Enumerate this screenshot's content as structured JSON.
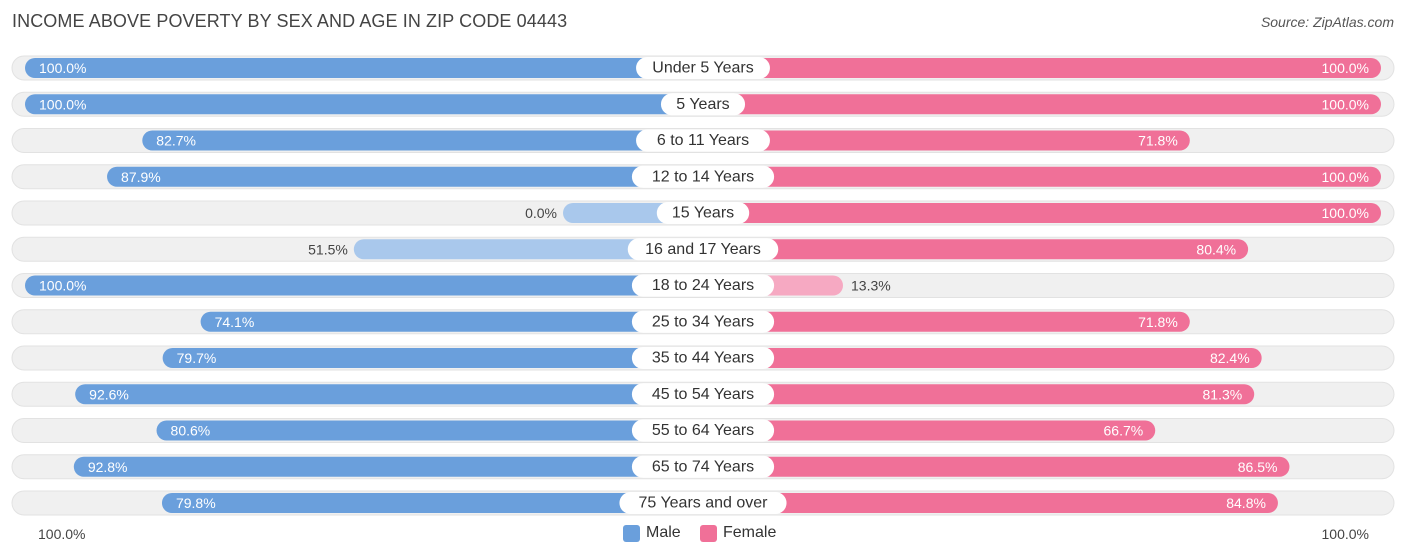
{
  "header": {
    "title": "INCOME ABOVE POVERTY BY SEX AND AGE IN ZIP CODE 04443",
    "source": "Source: ZipAtlas.com"
  },
  "colors": {
    "male_strong": "#6a9fdc",
    "male_light": "#a9c8ec",
    "female_strong": "#f07098",
    "female_light": "#f6a9c2",
    "track": "#f0f0f0"
  },
  "legend": {
    "male": "Male",
    "female": "Female"
  },
  "axis": {
    "left_label": "100.0%",
    "right_label": "100.0%"
  },
  "chart_data": {
    "type": "bar",
    "orientation": "horizontal-diverging",
    "title": "INCOME ABOVE POVERTY BY SEX AND AGE IN ZIP CODE 04443",
    "xlim": [
      0,
      100
    ],
    "unit": "%",
    "categories": [
      "Under 5 Years",
      "5 Years",
      "6 to 11 Years",
      "12 to 14 Years",
      "15 Years",
      "16 and 17 Years",
      "18 to 24 Years",
      "25 to 34 Years",
      "35 to 44 Years",
      "45 to 54 Years",
      "55 to 64 Years",
      "65 to 74 Years",
      "75 Years and over"
    ],
    "series": [
      {
        "name": "Male",
        "values": [
          100.0,
          100.0,
          82.7,
          87.9,
          0.0,
          51.5,
          100.0,
          74.1,
          79.7,
          92.6,
          80.6,
          92.8,
          79.8
        ],
        "labels": [
          "100.0%",
          "100.0%",
          "82.7%",
          "87.9%",
          "0.0%",
          "51.5%",
          "100.0%",
          "74.1%",
          "79.7%",
          "92.6%",
          "80.6%",
          "92.8%",
          "79.8%"
        ]
      },
      {
        "name": "Female",
        "values": [
          100.0,
          100.0,
          71.8,
          100.0,
          100.0,
          80.4,
          13.3,
          71.8,
          82.4,
          81.3,
          66.7,
          86.5,
          84.8
        ],
        "labels": [
          "100.0%",
          "100.0%",
          "71.8%",
          "100.0%",
          "100.0%",
          "80.4%",
          "13.3%",
          "71.8%",
          "82.4%",
          "81.3%",
          "66.7%",
          "86.5%",
          "84.8%"
        ]
      }
    ]
  }
}
